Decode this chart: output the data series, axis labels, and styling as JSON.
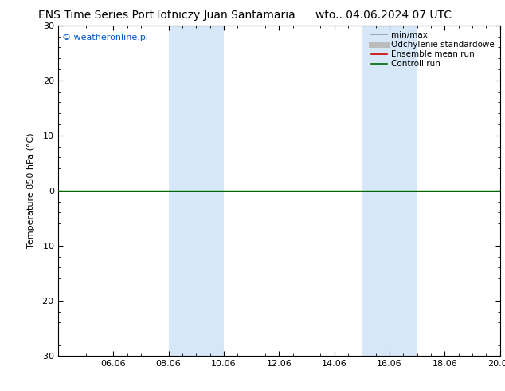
{
  "title_left": "ENS Time Series Port lotniczy Juan Santamaria",
  "title_right": "wto.. 04.06.2024 07 UTC",
  "ylabel": "Temperature 850 hPa (°C)",
  "ylim": [
    -30,
    30
  ],
  "yticks": [
    -30,
    -20,
    -10,
    0,
    10,
    20,
    30
  ],
  "xtick_labels": [
    "06.06",
    "08.06",
    "10.06",
    "12.06",
    "14.06",
    "16.06",
    "18.06",
    "20.06"
  ],
  "xtick_positions": [
    2,
    4,
    6,
    8,
    10,
    12,
    14,
    16
  ],
  "xlim": [
    0,
    16
  ],
  "shaded_regions": [
    {
      "xstart": 4,
      "xend": 6,
      "color": "#d6e8f7"
    },
    {
      "xstart": 11,
      "xend": 13,
      "color": "#d6e8f7"
    }
  ],
  "zero_line_color": "#006600",
  "background_color": "#ffffff",
  "plot_bg_color": "#ffffff",
  "watermark": "© weatheronline.pl",
  "watermark_color": "#0055cc",
  "legend_entries": [
    {
      "label": "min/max",
      "color": "#999999",
      "lw": 1.2,
      "style": "solid"
    },
    {
      "label": "Odchylenie standardowe",
      "color": "#bbbbbb",
      "lw": 5,
      "style": "solid"
    },
    {
      "label": "Ensemble mean run",
      "color": "#cc0000",
      "lw": 1.2,
      "style": "solid"
    },
    {
      "label": "Controll run",
      "color": "#006600",
      "lw": 1.2,
      "style": "solid"
    }
  ],
  "border_color": "#000000",
  "tick_color": "#000000",
  "fig_width": 6.34,
  "fig_height": 4.9,
  "dpi": 100,
  "title_fontsize": 10,
  "axis_fontsize": 8,
  "legend_fontsize": 7.5
}
